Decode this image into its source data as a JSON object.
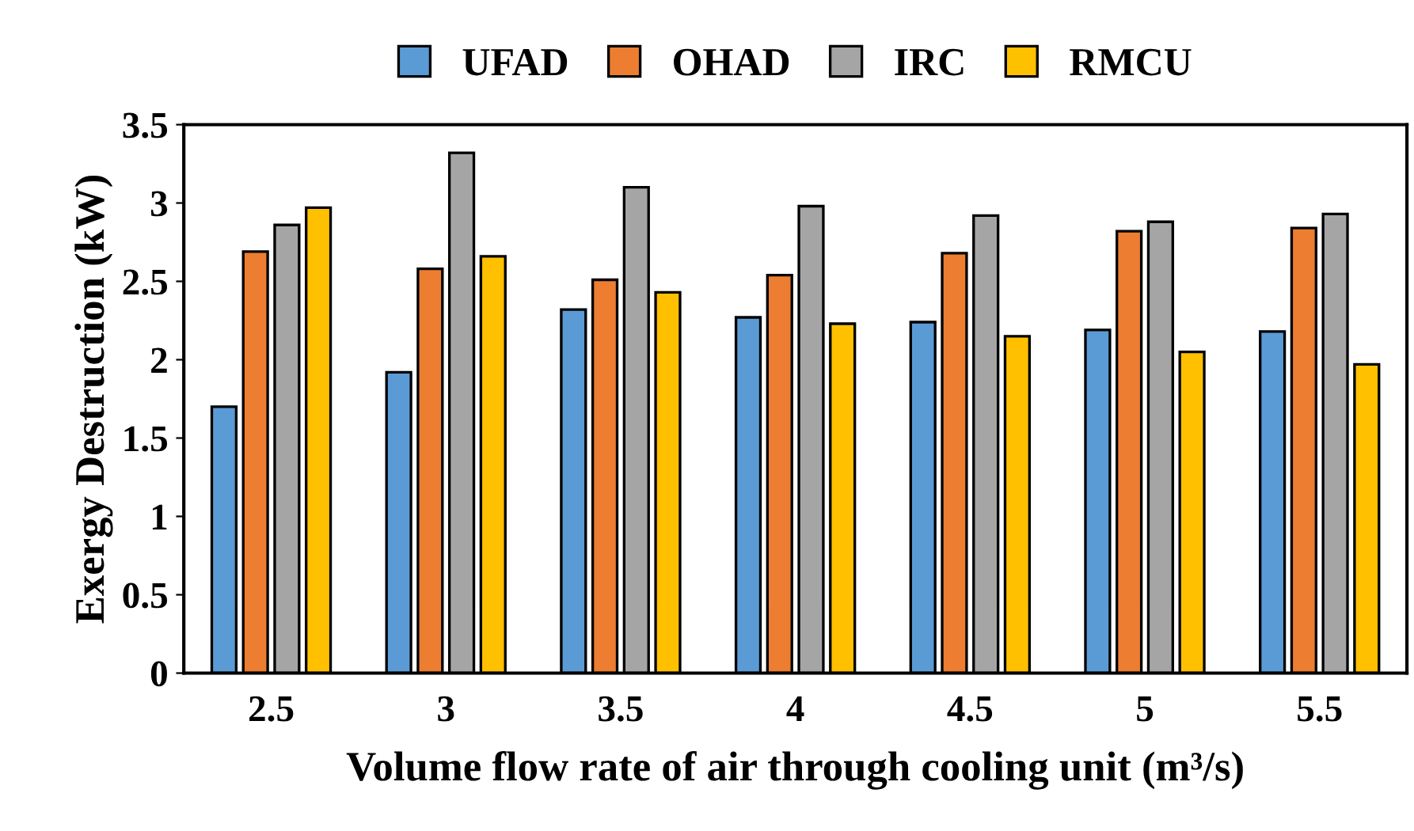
{
  "chart_data": {
    "type": "bar",
    "xlabel": "Volume flow rate of air through cooling unit (m³/s)",
    "ylabel": "Exergy Destruction (kW)",
    "categories": [
      "2.5",
      "3",
      "3.5",
      "4",
      "4.5",
      "5",
      "5.5"
    ],
    "series": [
      {
        "name": "UFAD",
        "color": "#5b9bd5",
        "values": [
          1.7,
          1.92,
          2.32,
          2.27,
          2.24,
          2.19,
          2.18
        ]
      },
      {
        "name": "OHAD",
        "color": "#ed7d31",
        "values": [
          2.69,
          2.58,
          2.51,
          2.54,
          2.68,
          2.82,
          2.84
        ]
      },
      {
        "name": "IRC",
        "color": "#a5a5a5",
        "values": [
          2.86,
          3.32,
          3.1,
          2.98,
          2.92,
          2.88,
          2.93
        ]
      },
      {
        "name": "RMCU",
        "color": "#ffc000",
        "values": [
          2.97,
          2.66,
          2.43,
          2.23,
          2.15,
          2.05,
          1.97
        ]
      }
    ],
    "ylim": [
      0,
      3.5
    ],
    "yticks": [
      0,
      0.5,
      1,
      1.5,
      2,
      2.5,
      3,
      3.5
    ],
    "grid": false,
    "legend": "top"
  }
}
